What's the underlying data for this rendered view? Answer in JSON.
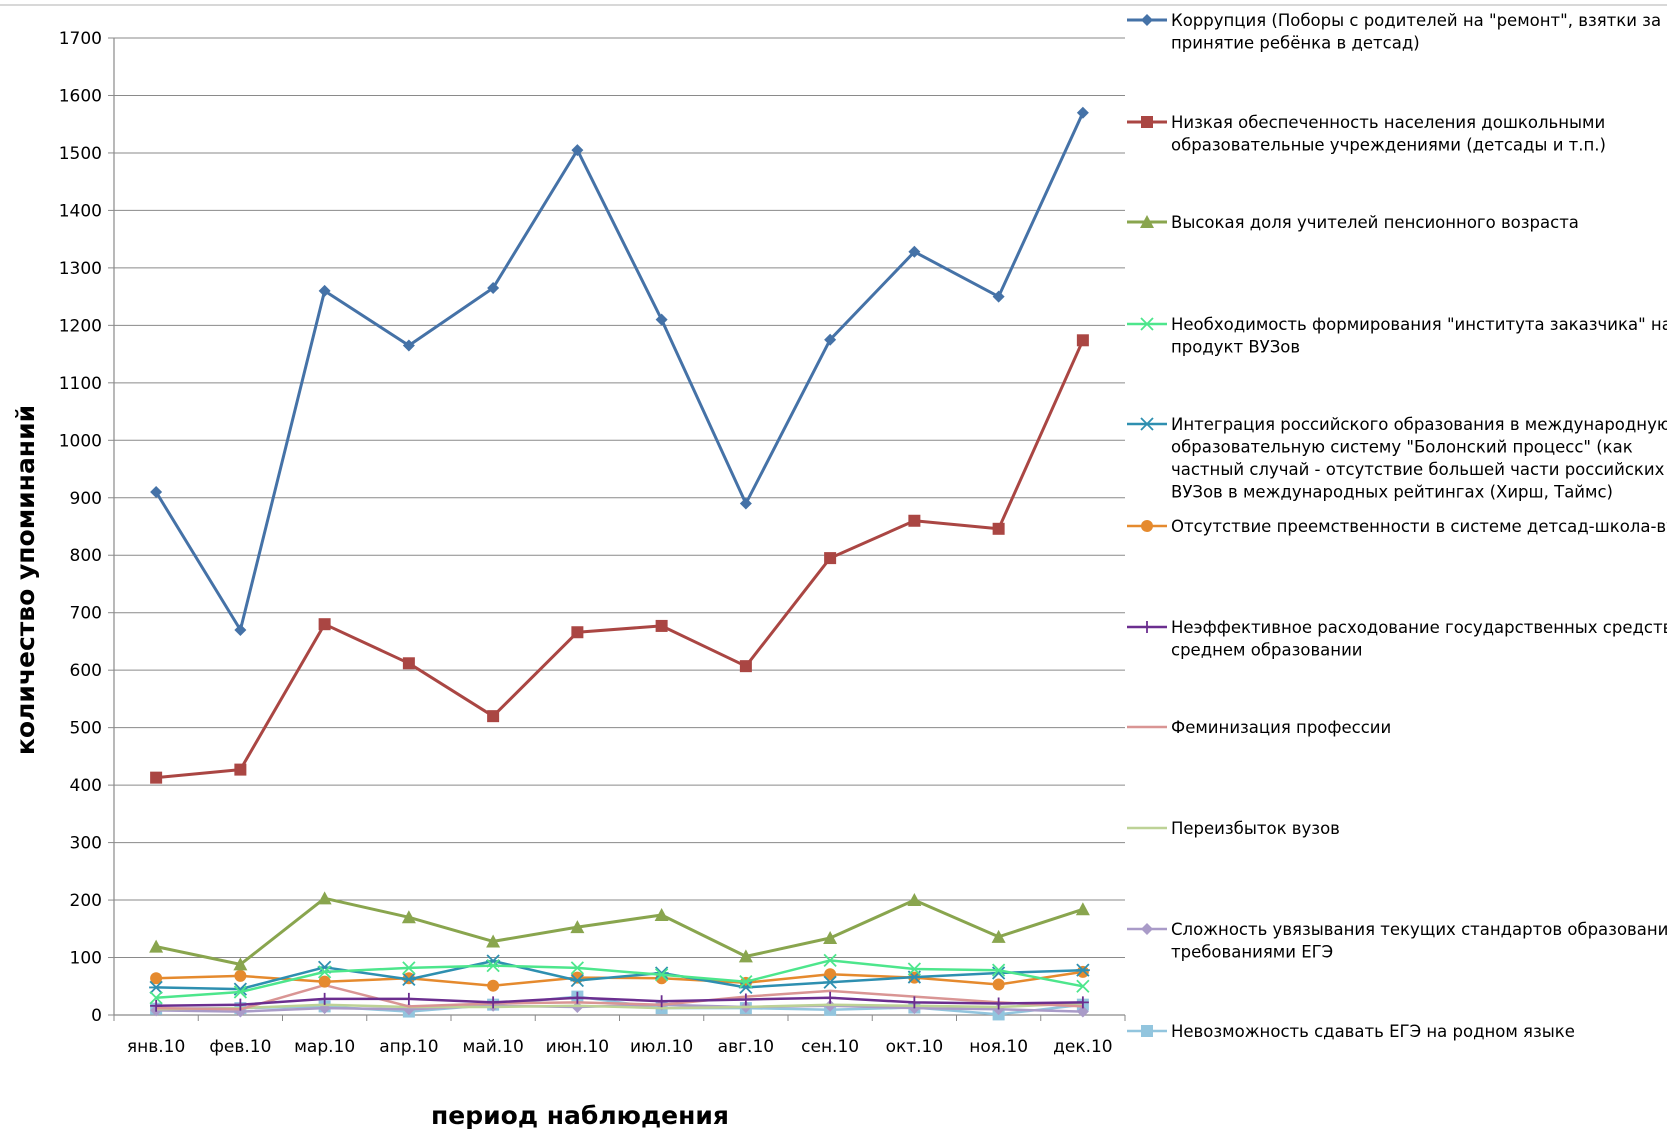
{
  "chart_data": {
    "type": "line",
    "title": "",
    "xlabel": "период наблюдения",
    "ylabel": "количество упоминаний",
    "ylim": [
      0,
      1700
    ],
    "ytick_step": 100,
    "grid": true,
    "legend_position": "right",
    "categories": [
      "янв.10",
      "фев.10",
      "мар.10",
      "апр.10",
      "май.10",
      "июн.10",
      "июл.10",
      "авг.10",
      "сен.10",
      "окт.10",
      "ноя.10",
      "дек.10"
    ],
    "series": [
      {
        "name": "Коррупция (Поборы с родителей на \"ремонт\", взятки за принятие ребёнка в детсад)",
        "legend_lines": [
          "Коррупция (Поборы с родителей на \"ремонт\", взятки за",
          "принятие ребёнка в детсад)"
        ],
        "color": "#4572A7",
        "marker": "diamond",
        "width": 3,
        "values": [
          910,
          670,
          1260,
          1165,
          1265,
          1505,
          1210,
          890,
          1175,
          1328,
          1250,
          1570
        ]
      },
      {
        "name": "Низкая обеспеченность населения дошкольными образовательные учреждениями (детсады и т.п.)",
        "legend_lines": [
          "Низкая обеспеченность населения дошкольными",
          "образовательные учреждениями (детсады и т.п.)"
        ],
        "color": "#AA4643",
        "marker": "square",
        "width": 3,
        "values": [
          413,
          427,
          680,
          612,
          520,
          666,
          677,
          607,
          795,
          860,
          846,
          1174
        ]
      },
      {
        "name": "Высокая доля учителей пенсионного возраста",
        "legend_lines": [
          "Высокая доля учителей пенсионного возраста"
        ],
        "color": "#89A54E",
        "marker": "triangle",
        "width": 3,
        "values": [
          119,
          88,
          203,
          170,
          128,
          153,
          174,
          102,
          134,
          200,
          136,
          184
        ]
      },
      {
        "name": "Необходимость формирования \"института заказчика\" на продукт ВУЗов",
        "legend_lines": [
          "Необходимость формирования \"института заказчика\" на",
          "продукт ВУЗов"
        ],
        "color": "#4DE68C",
        "marker": "x",
        "width": 2.5,
        "values": [
          30,
          40,
          75,
          82,
          86,
          82,
          70,
          58,
          95,
          80,
          78,
          50
        ]
      },
      {
        "name": "Интеграция российского образования в международную образовательную систему \"Болонский процесс\" (как частный случай - отсутствие большей части российских ВУЗов в международных рейтингах (Хирш, Таймс)",
        "legend_lines": [
          "Интеграция российского образования в международную",
          "образовательную систему \"Болонский процесс\" (как",
          "частный случай - отсутствие большей части российских",
          "ВУЗов в международных рейтингах (Хирш, Таймс)"
        ],
        "color": "#2E8FB0",
        "marker": "star",
        "width": 2.5,
        "values": [
          48,
          45,
          83,
          62,
          94,
          60,
          73,
          48,
          57,
          66,
          73,
          78
        ]
      },
      {
        "name": "Отсутствие преемственности в системе детсад-школа-вуз",
        "legend_lines": [
          "Отсутствие преемственности в системе детсад-школа-вуз"
        ],
        "color": "#E58A2E",
        "marker": "circle",
        "width": 2.5,
        "values": [
          64,
          68,
          58,
          64,
          51,
          65,
          64,
          56,
          71,
          65,
          53,
          75
        ]
      },
      {
        "name": "Неэффективное расходование государственных средств в среднем образовании",
        "legend_lines": [
          "Неэффективное расходование государственных средств в",
          "среднем образовании"
        ],
        "color": "#6B2E8F",
        "marker": "plus",
        "width": 2.5,
        "values": [
          16,
          18,
          28,
          28,
          22,
          30,
          24,
          27,
          30,
          22,
          20,
          22
        ]
      },
      {
        "name": "Феминизация профессии",
        "legend_lines": [
          "Феминизация профессии"
        ],
        "color": "#D99594",
        "marker": "none",
        "width": 2.5,
        "values": [
          12,
          10,
          52,
          15,
          20,
          22,
          18,
          32,
          42,
          32,
          22,
          15
        ]
      },
      {
        "name": "Переизбыток вузов",
        "legend_lines": [
          "Переизбыток вузов"
        ],
        "color": "#BDD296",
        "marker": "none",
        "width": 2.5,
        "values": [
          10,
          12,
          18,
          14,
          14,
          16,
          12,
          14,
          18,
          16,
          14,
          20
        ]
      },
      {
        "name": "Сложность увязывания текущих стандартов образования с требованиями ЕГЭ",
        "legend_lines": [
          "Сложность увязывания текущих стандартов образования с",
          "требованиями ЕГЭ"
        ],
        "color": "#A99BC8",
        "marker": "diamond",
        "width": 2.5,
        "values": [
          8,
          6,
          12,
          10,
          16,
          14,
          18,
          14,
          16,
          12,
          10,
          6
        ]
      },
      {
        "name": "Невозможность сдавать ЕГЭ на родном языке",
        "legend_lines": [
          "Невозможность сдавать ЕГЭ на родном языке"
        ],
        "color": "#92C5DE",
        "marker": "square",
        "width": 2.5,
        "values": [
          11,
          12,
          15,
          6,
          18,
          32,
          12,
          12,
          9,
          13,
          1,
          18
        ]
      }
    ]
  }
}
